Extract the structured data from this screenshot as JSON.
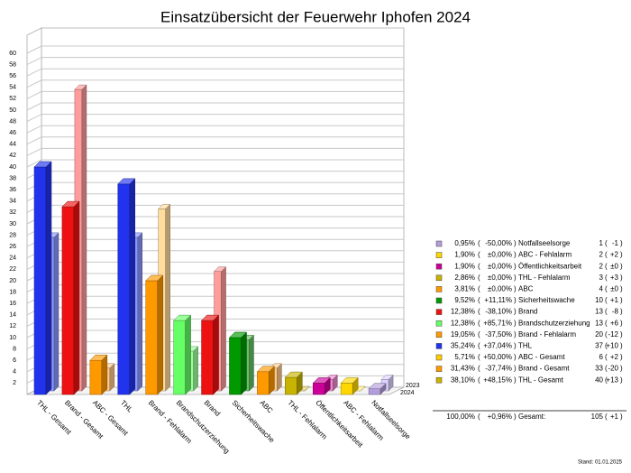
{
  "chart_data": {
    "type": "bar3d",
    "title": "Einsatzübersicht der Feuerwehr Iphofen 2024",
    "categories": [
      "THL - Gesamt",
      "Brand - Gesamt",
      "ABC - Gesamt",
      "THL",
      "Brand - Fehlalarm",
      "Brandschutzerziehung",
      "Brand",
      "Sicherheitswache",
      "ABC",
      "THL - Fehlalarm",
      "Öffentlichkeitsarbeit",
      "ABC - Fehlalarm",
      "Notfallseelsorge"
    ],
    "series": [
      {
        "name": "2023",
        "colors": [
          "#8a97ff",
          "#ff9c9c",
          "#ffc98a",
          "#8a97ff",
          "#ffdb9c",
          "#9cff9c",
          "#ff9c9c",
          "#66c266",
          "#ffc98a",
          "#ddcc66",
          "#ee88cc",
          "#ffee77",
          "#ddd4ff"
        ],
        "values": [
          27,
          53,
          4,
          27,
          32,
          7,
          21,
          9,
          4,
          0,
          2,
          0,
          2
        ]
      },
      {
        "name": "2024",
        "colors": [
          "#2233ee",
          "#ee1111",
          "#ff9900",
          "#2233ee",
          "#ff9900",
          "#66ff66",
          "#ee1111",
          "#009900",
          "#ff9900",
          "#c8b400",
          "#cc0099",
          "#ffd700",
          "#b39ddb"
        ],
        "values": [
          40,
          33,
          6,
          37,
          20,
          13,
          13,
          10,
          4,
          3,
          2,
          2,
          1
        ]
      }
    ],
    "ylim": [
      0,
      60
    ],
    "yticks": [
      2,
      4,
      6,
      8,
      10,
      12,
      14,
      16,
      18,
      20,
      22,
      24,
      26,
      28,
      30,
      32,
      34,
      36,
      38,
      40,
      42,
      44,
      46,
      48,
      50,
      52,
      54,
      56,
      58,
      60
    ],
    "grid": true,
    "legend": {
      "paren_open": "(",
      "paren_close": ")",
      "rows": [
        {
          "color": "#b39ddb",
          "share": "0,95%",
          "change_pct": "-50,00%",
          "name": "Notfallseelsorge",
          "count": 1,
          "change": "-1",
          "trend": "down"
        },
        {
          "color": "#ffd700",
          "share": "1,90%",
          "change_pct": "±0,00%",
          "name": "ABC - Fehlalarm",
          "count": 2,
          "change": "+2",
          "trend": "up"
        },
        {
          "color": "#cc0099",
          "share": "1,90%",
          "change_pct": "±0,00%",
          "name": "Öffentlichkeitsarbeit",
          "count": 2,
          "change": "±0",
          "trend": "flat"
        },
        {
          "color": "#c8b400",
          "share": "2,86%",
          "change_pct": "±0,00%",
          "name": "THL - Fehlalarm",
          "count": 3,
          "change": "+3",
          "trend": "up"
        },
        {
          "color": "#ff9900",
          "share": "3,81%",
          "change_pct": "±0,00%",
          "name": "ABC",
          "count": 4,
          "change": "±0",
          "trend": "flat"
        },
        {
          "color": "#009900",
          "share": "9,52%",
          "change_pct": "+11,11%",
          "name": "Sicherheitswache",
          "count": 10,
          "change": "+1",
          "trend": "up"
        },
        {
          "color": "#ee1111",
          "share": "12,38%",
          "change_pct": "-38,10%",
          "name": "Brand",
          "count": 13,
          "change": "-8",
          "trend": "down"
        },
        {
          "color": "#66ff66",
          "share": "12,38%",
          "change_pct": "+85,71%",
          "name": "Brandschutzerziehung",
          "count": 13,
          "change": "+6",
          "trend": "up"
        },
        {
          "color": "#ff9900",
          "share": "19,05%",
          "change_pct": "-37,50%",
          "name": "Brand - Fehlalarm",
          "count": 20,
          "change": "-12",
          "trend": "down"
        },
        {
          "color": "#2233ee",
          "share": "35,24%",
          "change_pct": "+37,04%",
          "name": "THL",
          "count": 37,
          "change": "+10",
          "trend": "up"
        },
        {
          "color": "#ffcc00",
          "share": "5,71%",
          "change_pct": "+50,00%",
          "name": "ABC - Gesamt",
          "count": 6,
          "change": "+2",
          "trend": "up"
        },
        {
          "color": "#ff9900",
          "share": "31,43%",
          "change_pct": "-37,74%",
          "name": "Brand - Gesamt",
          "count": 33,
          "change": "-20",
          "trend": "down"
        },
        {
          "color": "#ccb300",
          "share": "38,10%",
          "change_pct": "+48,15%",
          "name": "THL - Gesamt",
          "count": 40,
          "change": "+13",
          "trend": "up"
        }
      ],
      "total": {
        "share": "100,00%",
        "change_pct": "+0,96%",
        "name": "Gesamt:",
        "count": 105,
        "change": "+1",
        "trend": "up"
      }
    },
    "footer": "Stand: 01.01.2025"
  }
}
